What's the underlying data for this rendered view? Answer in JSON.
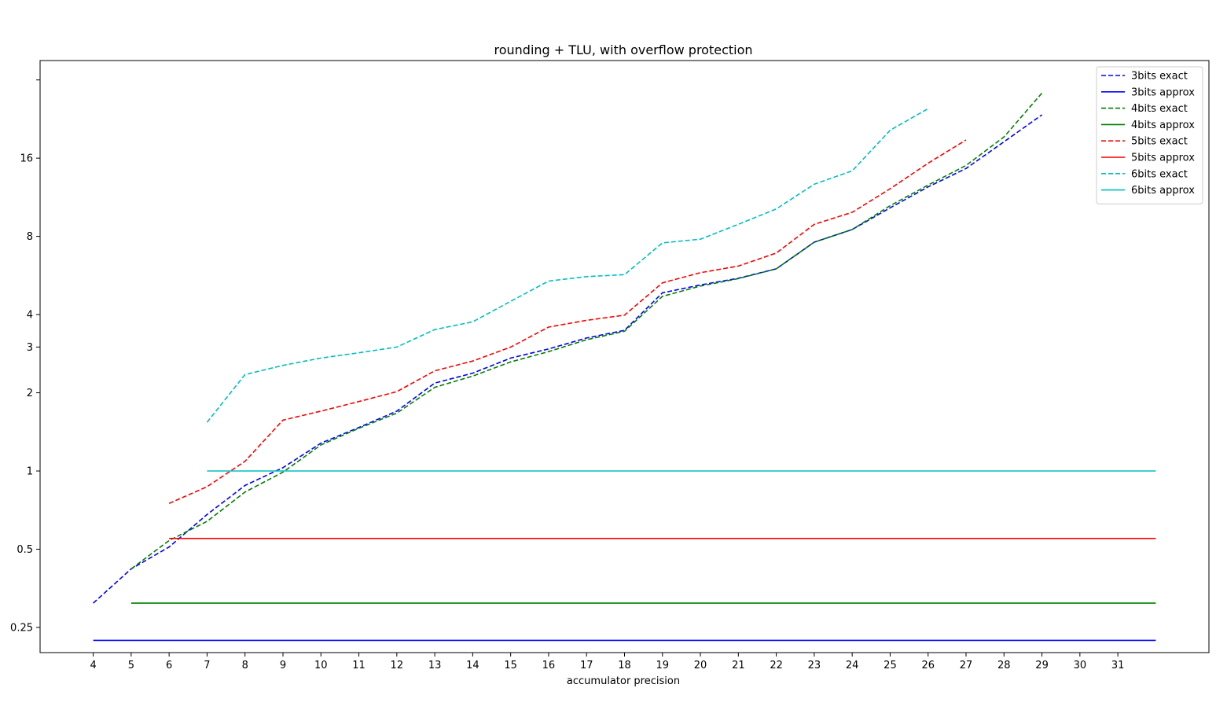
{
  "chart_data": {
    "type": "line",
    "title": "rounding + TLU, with overflow protection",
    "xlabel": "accumulator precision",
    "ylabel": "",
    "yscale": "log2",
    "xlim": [
      2.6,
      33.4
    ],
    "ylim": [
      0.2,
      38
    ],
    "xticks": [
      4,
      5,
      6,
      7,
      8,
      9,
      10,
      11,
      12,
      13,
      14,
      15,
      16,
      17,
      18,
      19,
      20,
      21,
      22,
      23,
      24,
      25,
      26,
      27,
      28,
      29,
      30,
      31
    ],
    "yticks": [
      {
        "value": 0.25,
        "label": "0.25"
      },
      {
        "value": 0.5,
        "label": "0.5"
      },
      {
        "value": 1,
        "label": "1"
      },
      {
        "value": 2,
        "label": "2"
      },
      {
        "value": 3,
        "label": "3"
      },
      {
        "value": 4,
        "label": "4"
      },
      {
        "value": 8,
        "label": "8"
      },
      {
        "value": 16,
        "label": "16"
      },
      {
        "value": 32,
        "label": ""
      }
    ],
    "grid": false,
    "legend_position": "top-right",
    "series": [
      {
        "name": "3bits exact",
        "color": "#0000ff",
        "dash": true,
        "x": [
          4,
          5,
          6,
          7,
          8,
          9,
          10,
          11,
          12,
          13,
          14,
          15,
          16,
          17,
          18,
          19,
          20,
          21,
          22,
          23,
          24,
          25,
          26,
          27,
          28,
          29
        ],
        "y": [
          0.31,
          0.42,
          0.51,
          0.68,
          0.88,
          1.03,
          1.28,
          1.47,
          1.7,
          2.18,
          2.38,
          2.72,
          2.95,
          3.25,
          3.48,
          4.85,
          5.2,
          5.52,
          6.0,
          7.6,
          8.5,
          10.3,
          12.4,
          14.6,
          18.5,
          23.5
        ]
      },
      {
        "name": "3bits approx",
        "color": "#0000ff",
        "dash": false,
        "x": [
          4,
          32
        ],
        "y": [
          0.223,
          0.223
        ]
      },
      {
        "name": "4bits exact",
        "color": "#008000",
        "dash": true,
        "x": [
          5,
          6,
          7,
          8,
          9,
          10,
          11,
          12,
          13,
          14,
          15,
          16,
          17,
          18,
          19,
          20,
          21,
          22,
          23,
          24,
          25,
          26,
          27,
          28,
          29
        ],
        "y": [
          0.42,
          0.54,
          0.64,
          0.83,
          0.99,
          1.26,
          1.46,
          1.67,
          2.1,
          2.32,
          2.63,
          2.88,
          3.2,
          3.45,
          4.7,
          5.15,
          5.5,
          6.0,
          7.6,
          8.5,
          10.5,
          12.6,
          15.0,
          19.3,
          28.5
        ]
      },
      {
        "name": "4bits approx",
        "color": "#008000",
        "dash": false,
        "x": [
          5,
          32
        ],
        "y": [
          0.31,
          0.31
        ]
      },
      {
        "name": "5bits exact",
        "color": "#ff0000",
        "dash": true,
        "x": [
          6,
          7,
          8,
          9,
          10,
          11,
          12,
          13,
          14,
          15,
          16,
          17,
          18,
          19,
          20,
          21,
          22,
          23,
          24,
          25,
          26,
          27
        ],
        "y": [
          0.75,
          0.87,
          1.09,
          1.57,
          1.7,
          1.85,
          2.02,
          2.43,
          2.65,
          3.0,
          3.58,
          3.8,
          3.98,
          5.3,
          5.8,
          6.15,
          6.9,
          8.9,
          9.9,
          12.2,
          15.3,
          18.8
        ]
      },
      {
        "name": "5bits approx",
        "color": "#ff0000",
        "dash": false,
        "x": [
          6,
          32
        ],
        "y": [
          0.55,
          0.55
        ]
      },
      {
        "name": "6bits exact",
        "color": "#00bfbf",
        "dash": true,
        "x": [
          7,
          8,
          9,
          10,
          11,
          12,
          13,
          14,
          15,
          16,
          17,
          18,
          19,
          20,
          21,
          22,
          23,
          24,
          25,
          26
        ],
        "y": [
          1.54,
          2.35,
          2.55,
          2.72,
          2.85,
          3.0,
          3.5,
          3.75,
          4.5,
          5.38,
          5.6,
          5.7,
          7.55,
          7.8,
          8.9,
          10.2,
          12.7,
          14.3,
          20.5,
          24.8
        ]
      },
      {
        "name": "6bits approx",
        "color": "#00bfbf",
        "dash": false,
        "x": [
          7,
          32
        ],
        "y": [
          1.0,
          1.0
        ]
      }
    ]
  }
}
